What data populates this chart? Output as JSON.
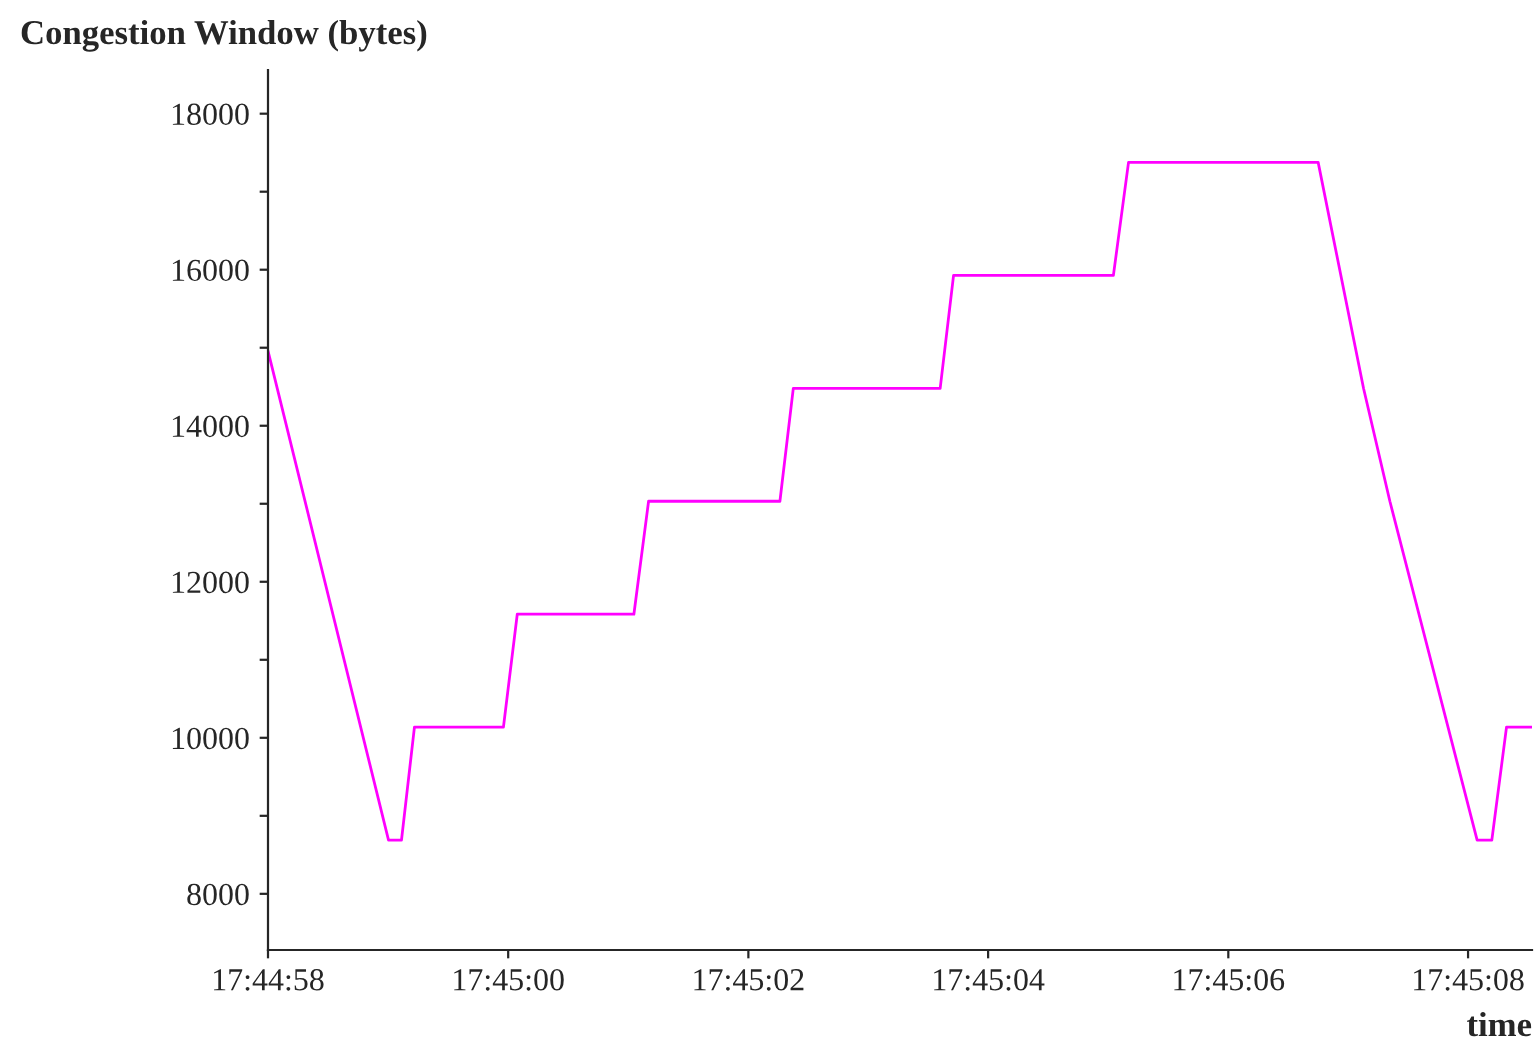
{
  "chart_data": {
    "type": "line",
    "title": "Congestion Window (bytes)",
    "xlabel": "time",
    "x": [
      17.749444,
      17.749723,
      17.749753,
      17.749783,
      17.749989,
      17.750021,
      17.750291,
      17.750325,
      17.750629,
      17.75066,
      17.751,
      17.751031,
      17.751401,
      17.751436,
      17.751875,
      17.75198,
      17.752041,
      17.752243,
      17.752277,
      17.752311,
      17.75237
    ],
    "series": [
      {
        "color": "#ff00ff",
        "values": [
          14960,
          8688,
          8688,
          10136,
          10136,
          11584,
          11584,
          13032,
          13032,
          14480,
          14480,
          15928,
          15928,
          17376,
          17376,
          14480,
          13032,
          8688,
          8688,
          10136,
          10136
        ]
      }
    ],
    "xlim": [
      17.749444,
      17.75237
    ],
    "ylim": [
      7280,
      18560
    ],
    "xticks": [
      {
        "value": 17.749444,
        "label": "17:44:58"
      },
      {
        "value": 17.75,
        "label": "17:45:00"
      },
      {
        "value": 17.750556,
        "label": "17:45:02"
      },
      {
        "value": 17.751111,
        "label": "17:45:04"
      },
      {
        "value": 17.751667,
        "label": "17:45:06"
      },
      {
        "value": 17.752222,
        "label": "17:45:08"
      }
    ],
    "yticks": [
      8000,
      {
        "value": 9000,
        "label": null
      },
      10000,
      {
        "value": 11000,
        "label": null
      },
      12000,
      {
        "value": 13000,
        "label": null
      },
      14000,
      {
        "value": 15000,
        "label": null
      },
      16000,
      {
        "value": 17000,
        "label": null
      },
      18000
    ],
    "grid": false,
    "legend": false,
    "marker": "none",
    "line_style": "solid"
  }
}
